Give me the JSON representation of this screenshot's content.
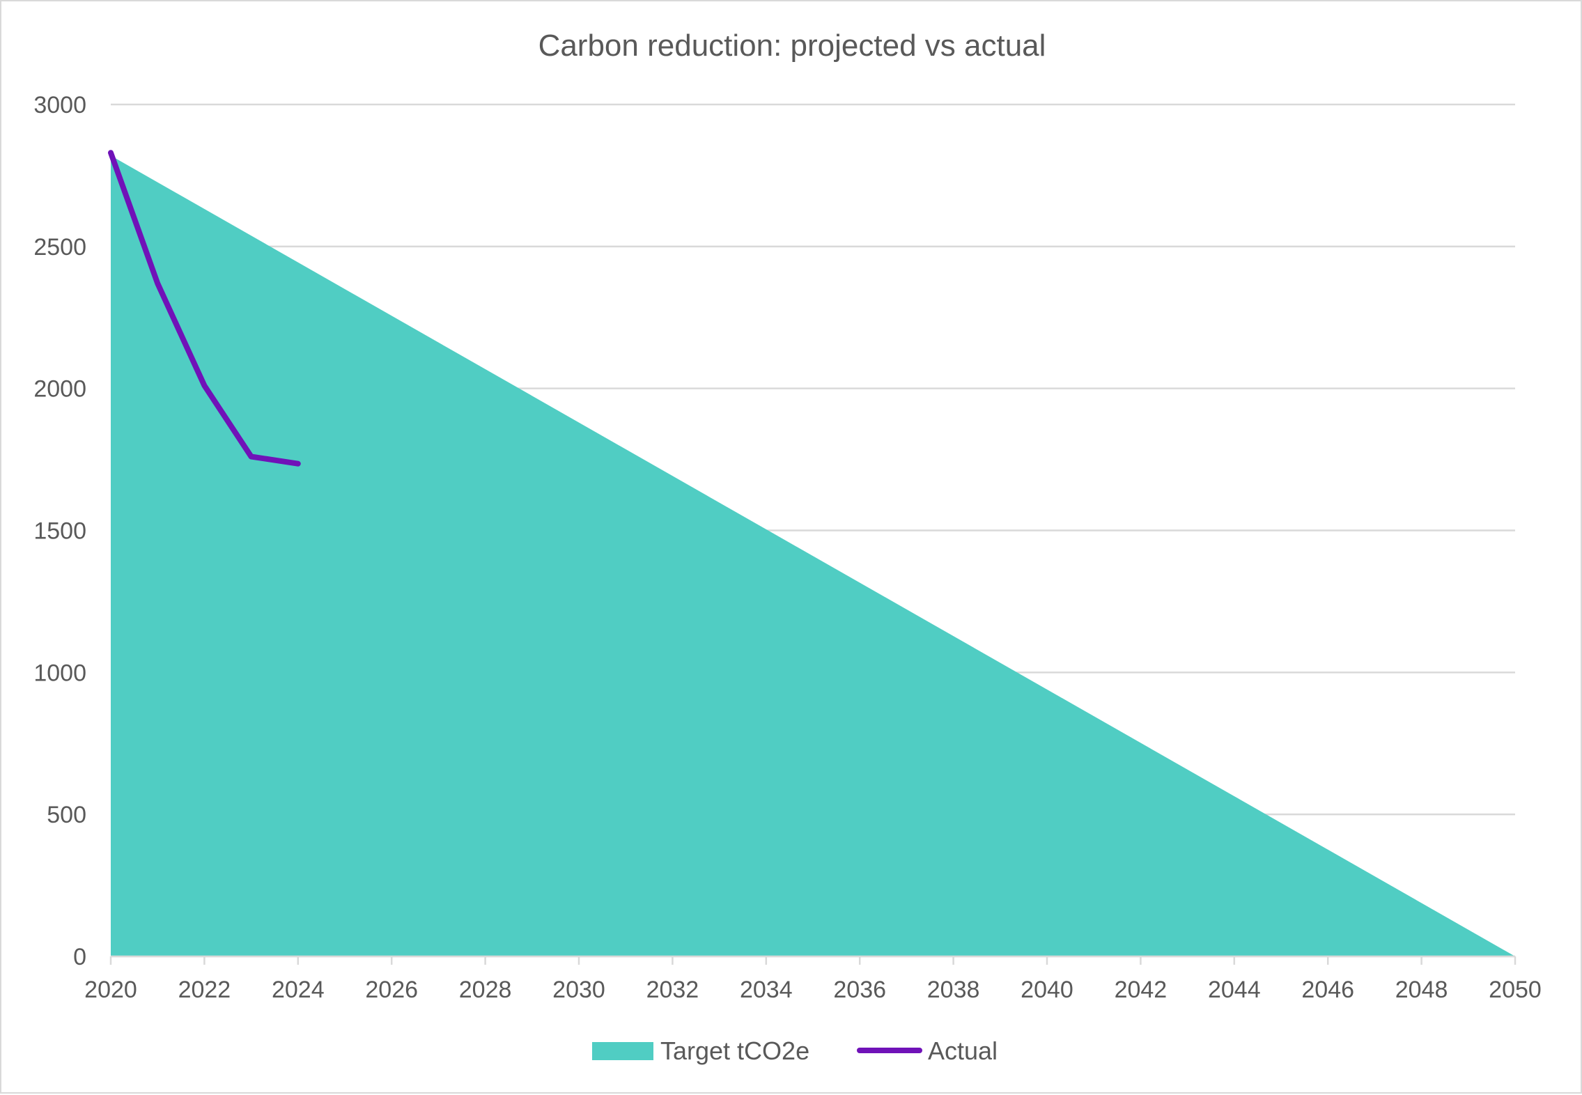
{
  "chart_data": {
    "type": "area",
    "title": "Carbon reduction: projected vs actual",
    "xlabel": "",
    "ylabel": "",
    "xlim": [
      2020,
      2050
    ],
    "ylim": [
      0,
      3000
    ],
    "x_ticks": [
      "2020",
      "2022",
      "2024",
      "2026",
      "2028",
      "2030",
      "2032",
      "2034",
      "2036",
      "2038",
      "2040",
      "2042",
      "2044",
      "2046",
      "2048",
      "2050"
    ],
    "y_ticks": [
      "0",
      "500",
      "1000",
      "1500",
      "2000",
      "2500",
      "3000"
    ],
    "grid": true,
    "legend_position": "bottom",
    "series": [
      {
        "name": "Target tCO2e",
        "kind": "area",
        "color": "#50cdc3",
        "x": [
          2020,
          2050
        ],
        "values": [
          2820,
          0
        ]
      },
      {
        "name": "Actual",
        "kind": "line",
        "color": "#7012b8",
        "x": [
          2020,
          2021,
          2022,
          2023,
          2024
        ],
        "values": [
          2830,
          2370,
          2010,
          1760,
          1735
        ]
      }
    ]
  }
}
